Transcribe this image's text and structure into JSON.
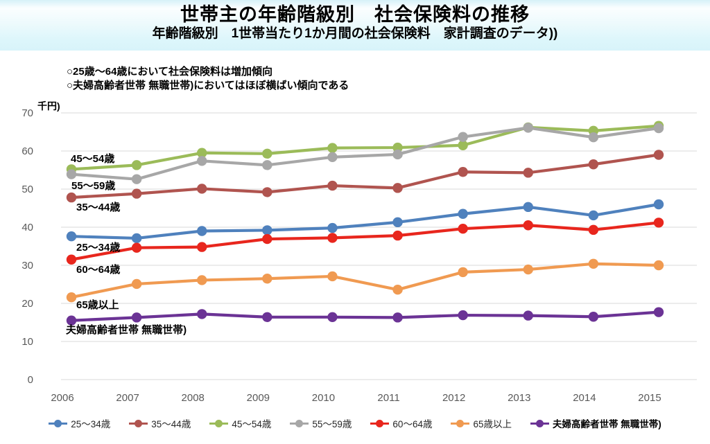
{
  "header": {
    "title": "世帯主の年齢階級別　社会保険料の推移",
    "subtitle": "年齢階級別　1世帯当たり1か月間の社会保険料　家計調査のデータ))"
  },
  "annotations": [
    "○25歳～64歳において社会保険料は増加傾向",
    "○夫婦高齢者世帯 無職世帯)においてはほぼ横ばい傾向である"
  ],
  "chart_data": {
    "type": "line",
    "title": "世帯主の年齢階級別　社会保険料の推移",
    "subtitle": "年齢階級別　1世帯当たり1か月間の社会保険料 家計調査のデータ))",
    "unit_label": "千円)",
    "xlabel": "",
    "ylabel": "千円)",
    "x": [
      "2006",
      "2007",
      "2008",
      "2009",
      "2010",
      "2011",
      "2012",
      "2013",
      "2014",
      "2015"
    ],
    "ylim": [
      0,
      70
    ],
    "ytick_step": 10,
    "grid": "horizontal",
    "legend_position": "bottom",
    "axis_text_color": "#595959",
    "gridline_color": "#d9d9d9",
    "series": [
      {
        "name": "25～34歳",
        "color": "#4F81BD",
        "values": [
          37.6,
          37.1,
          39.0,
          39.2,
          39.8,
          41.3,
          43.5,
          45.3,
          43.1,
          46.0
        ]
      },
      {
        "name": "35～44歳",
        "color": "#B0544F",
        "values": [
          47.8,
          48.8,
          50.1,
          49.2,
          50.9,
          50.3,
          54.5,
          54.3,
          56.5,
          59.0
        ]
      },
      {
        "name": "45～54歳",
        "color": "#9BBB59",
        "values": [
          55.2,
          56.3,
          59.5,
          59.3,
          60.8,
          60.9,
          61.5,
          66.2,
          65.3,
          66.6
        ]
      },
      {
        "name": "55～59歳",
        "color": "#A7A7A7",
        "values": [
          53.9,
          52.6,
          57.4,
          56.3,
          58.4,
          59.1,
          63.7,
          66.1,
          63.6,
          66.0
        ]
      },
      {
        "name": "60～64歳",
        "color": "#E8261D",
        "values": [
          31.5,
          34.6,
          34.8,
          36.9,
          37.2,
          37.8,
          39.6,
          40.5,
          39.3,
          41.2
        ]
      },
      {
        "name": "65歳以上",
        "color": "#F09A51",
        "values": [
          21.6,
          25.1,
          26.1,
          26.5,
          27.1,
          23.6,
          28.2,
          28.9,
          30.4,
          30.0
        ]
      },
      {
        "name": "夫婦高齢者世帯 無職世帯)",
        "color": "#6B3395",
        "values": [
          15.5,
          16.3,
          17.2,
          16.4,
          16.4,
          16.3,
          16.9,
          16.8,
          16.5,
          17.7
        ]
      }
    ]
  }
}
